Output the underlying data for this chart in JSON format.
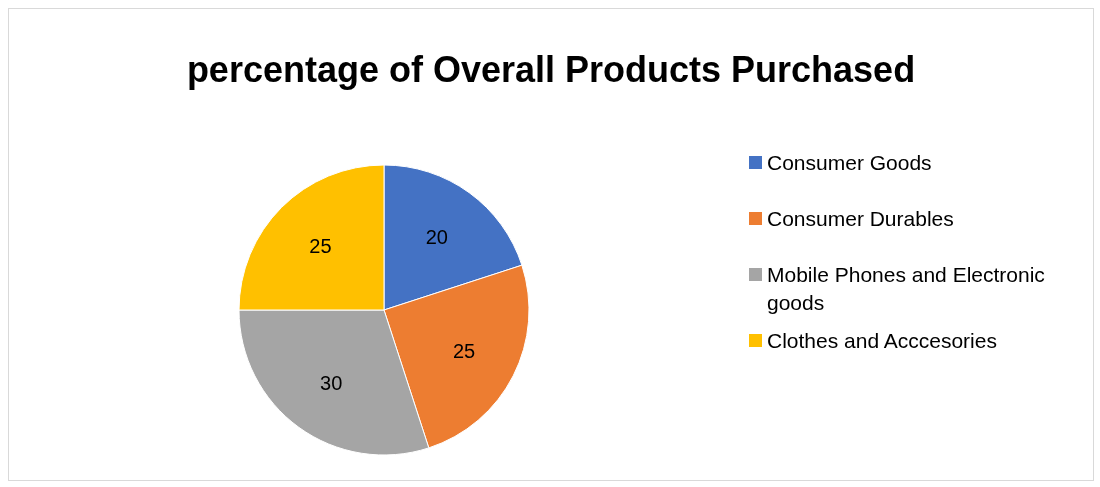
{
  "chart_data": {
    "type": "pie",
    "title": "percentage of Overall Products Purchased",
    "categories": [
      "Consumer Goods",
      "Consumer Durables",
      "Mobile Phones and Electronic goods",
      "Clothes and Acccesories"
    ],
    "values": [
      20,
      25,
      30,
      25
    ],
    "colors": [
      "#4472c4",
      "#ed7d31",
      "#a5a5a5",
      "#ffc000"
    ],
    "data_labels": true,
    "legend": "right"
  }
}
